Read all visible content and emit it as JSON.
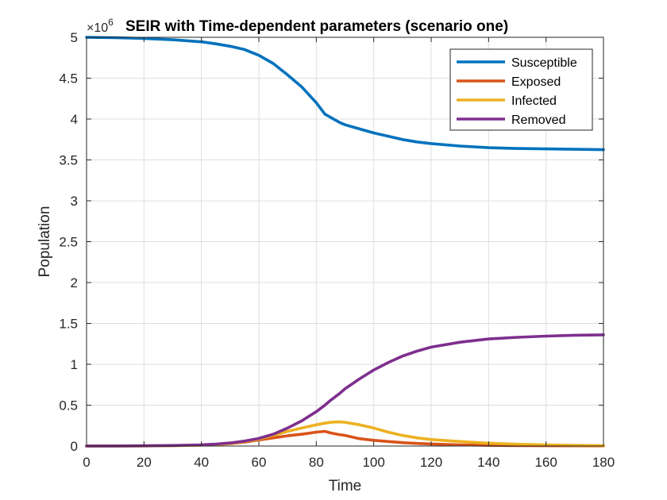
{
  "chart_data": {
    "type": "line",
    "title": "SEIR with Time-dependent parameters (scenario one)",
    "xlabel": "Time",
    "ylabel": "Population",
    "y_exponent_base": "×10",
    "y_exponent_power": "6",
    "xlim": [
      0,
      180
    ],
    "ylim": [
      0,
      5
    ],
    "xticks": [
      0,
      20,
      40,
      60,
      80,
      100,
      120,
      140,
      160,
      180
    ],
    "yticks": [
      0,
      0.5,
      1,
      1.5,
      2,
      2.5,
      3,
      3.5,
      4,
      4.5,
      5
    ],
    "xtick_labels": [
      "0",
      "20",
      "40",
      "60",
      "80",
      "100",
      "120",
      "140",
      "160",
      "180"
    ],
    "ytick_labels": [
      "0",
      "0.5",
      "1",
      "1.5",
      "2",
      "2.5",
      "3",
      "3.5",
      "4",
      "4.5",
      "5"
    ],
    "grid": true,
    "legend_position": "top-right",
    "x": [
      0,
      10,
      20,
      30,
      40,
      45,
      50,
      55,
      60,
      65,
      70,
      75,
      80,
      83,
      85,
      88,
      90,
      95,
      100,
      105,
      110,
      115,
      120,
      130,
      140,
      150,
      160,
      170,
      180
    ],
    "series": [
      {
        "name": "Susceptible",
        "color": "#0072bd",
        "values": [
          5.0,
          4.995,
          4.985,
          4.97,
          4.945,
          4.92,
          4.89,
          4.85,
          4.78,
          4.68,
          4.54,
          4.39,
          4.2,
          4.06,
          4.02,
          3.96,
          3.93,
          3.88,
          3.83,
          3.79,
          3.75,
          3.72,
          3.7,
          3.67,
          3.65,
          3.64,
          3.635,
          3.63,
          3.625
        ]
      },
      {
        "name": "Exposed",
        "color": "#d95319",
        "values": [
          0.0,
          0.001,
          0.002,
          0.005,
          0.012,
          0.019,
          0.03,
          0.048,
          0.075,
          0.1,
          0.125,
          0.145,
          0.17,
          0.18,
          0.16,
          0.14,
          0.13,
          0.09,
          0.07,
          0.055,
          0.042,
          0.032,
          0.025,
          0.015,
          0.009,
          0.006,
          0.004,
          0.003,
          0.002
        ]
      },
      {
        "name": "Infected",
        "color": "#edb120",
        "values": [
          0.0,
          0.001,
          0.002,
          0.005,
          0.012,
          0.02,
          0.033,
          0.055,
          0.085,
          0.13,
          0.18,
          0.22,
          0.26,
          0.28,
          0.29,
          0.295,
          0.29,
          0.26,
          0.22,
          0.17,
          0.13,
          0.1,
          0.08,
          0.055,
          0.035,
          0.022,
          0.014,
          0.008,
          0.005
        ]
      },
      {
        "name": "Removed",
        "color": "#7e2f8e",
        "values": [
          0.0,
          0.001,
          0.003,
          0.007,
          0.015,
          0.024,
          0.038,
          0.06,
          0.093,
          0.145,
          0.22,
          0.31,
          0.42,
          0.5,
          0.56,
          0.64,
          0.7,
          0.82,
          0.93,
          1.02,
          1.1,
          1.16,
          1.21,
          1.27,
          1.31,
          1.33,
          1.345,
          1.355,
          1.36
        ]
      }
    ]
  }
}
